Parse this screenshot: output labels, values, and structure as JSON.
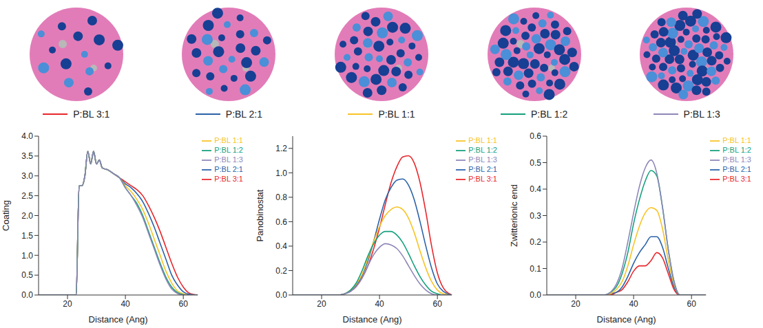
{
  "chart_data": [
    {
      "type": "line",
      "x_label": "Distance (Ang)",
      "y_label": "Coating",
      "legend": "right",
      "xlim": [
        10,
        65
      ],
      "xticks": [
        20,
        40,
        60
      ],
      "ylim": [
        0,
        4
      ],
      "yticks": [
        {
          "value": 0,
          "label": "0.0"
        },
        {
          "value": 0.5,
          "label": "0.5"
        },
        {
          "value": 1,
          "label": "1.0"
        },
        {
          "value": 1.5,
          "label": "1.5"
        },
        {
          "value": 2,
          "label": "2.0"
        },
        {
          "value": 2.5,
          "label": "2.5"
        },
        {
          "value": 3,
          "label": "3.0"
        },
        {
          "value": 3.5,
          "label": "3.5"
        },
        {
          "value": 4,
          "label": "4.0"
        }
      ],
      "x": [
        10,
        20,
        22,
        23,
        24,
        25,
        26,
        27,
        28,
        29,
        30,
        31,
        32,
        34,
        36,
        38,
        40,
        42,
        44,
        46,
        48,
        50,
        52,
        54,
        56,
        58,
        60,
        62,
        65
      ],
      "series": [
        {
          "name": "P:BL 3:1",
          "color": "#e8262b",
          "values": [
            0,
            0,
            0,
            0,
            2.75,
            2.75,
            3.0,
            3.62,
            3.3,
            3.62,
            3.3,
            3.4,
            3.2,
            3.15,
            3.05,
            2.95,
            2.85,
            2.75,
            2.65,
            2.5,
            2.25,
            1.95,
            1.6,
            1.2,
            0.8,
            0.45,
            0.2,
            0.05,
            0
          ]
        },
        {
          "name": "P:BL 2:1",
          "color": "#2a62a8",
          "values": [
            0,
            0,
            0,
            0,
            2.75,
            2.75,
            3.0,
            3.62,
            3.3,
            3.62,
            3.3,
            3.4,
            3.2,
            3.15,
            3.05,
            2.95,
            2.8,
            2.7,
            2.55,
            2.35,
            2.05,
            1.7,
            1.3,
            0.9,
            0.5,
            0.25,
            0.08,
            0.02,
            0
          ]
        },
        {
          "name": "P:BL 1:1",
          "color": "#f7c325",
          "values": [
            0,
            0,
            0,
            0,
            2.75,
            2.75,
            3.0,
            3.62,
            3.3,
            3.62,
            3.3,
            3.4,
            3.2,
            3.15,
            3.05,
            2.95,
            2.75,
            2.6,
            2.4,
            2.15,
            1.8,
            1.4,
            1.0,
            0.6,
            0.3,
            0.1,
            0.03,
            0,
            0
          ]
        },
        {
          "name": "P:BL 1:2",
          "color": "#13a07d",
          "values": [
            0,
            0,
            0,
            0,
            2.75,
            2.75,
            3.0,
            3.62,
            3.3,
            3.62,
            3.3,
            3.4,
            3.2,
            3.15,
            3.05,
            2.95,
            2.7,
            2.5,
            2.3,
            2.0,
            1.6,
            1.2,
            0.8,
            0.45,
            0.2,
            0.06,
            0.01,
            0,
            0
          ]
        },
        {
          "name": "P:BL 1:3",
          "color": "#8d86b8",
          "values": [
            0,
            0,
            0,
            0,
            2.75,
            2.75,
            3.0,
            3.62,
            3.3,
            3.62,
            3.3,
            3.4,
            3.2,
            3.15,
            3.05,
            2.95,
            2.7,
            2.5,
            2.25,
            1.95,
            1.55,
            1.15,
            0.75,
            0.4,
            0.15,
            0.04,
            0,
            0,
            0
          ]
        }
      ]
    },
    {
      "type": "line",
      "x_label": "Distance (Ang)",
      "y_label": "Panobinostat",
      "legend": "right",
      "xlim": [
        10,
        65
      ],
      "xticks": [
        20,
        40,
        60
      ],
      "ylim": [
        0,
        1.3
      ],
      "yticks": [
        {
          "value": 0,
          "label": "0.0"
        },
        {
          "value": 0.2,
          "label": "0.2"
        },
        {
          "value": 0.4,
          "label": "0.4"
        },
        {
          "value": 0.6,
          "label": "0.6"
        },
        {
          "value": 0.8,
          "label": "0.8"
        },
        {
          "value": 1,
          "label": "1.0"
        },
        {
          "value": 1.2,
          "label": "1.2"
        }
      ],
      "x": [
        10,
        20,
        26,
        28,
        30,
        32,
        34,
        36,
        38,
        40,
        42,
        44,
        46,
        48,
        50,
        52,
        54,
        56,
        58,
        60,
        62,
        65
      ],
      "series": [
        {
          "name": "P:BL 3:1",
          "color": "#e8262b",
          "values": [
            0,
            0,
            0,
            0.01,
            0.03,
            0.07,
            0.14,
            0.24,
            0.38,
            0.55,
            0.74,
            0.92,
            1.05,
            1.13,
            1.14,
            1.08,
            0.92,
            0.68,
            0.4,
            0.18,
            0.06,
            0
          ]
        },
        {
          "name": "P:BL 2:1",
          "color": "#2a62a8",
          "values": [
            0,
            0,
            0,
            0.01,
            0.03,
            0.08,
            0.16,
            0.28,
            0.44,
            0.62,
            0.78,
            0.88,
            0.94,
            0.95,
            0.9,
            0.78,
            0.6,
            0.4,
            0.22,
            0.09,
            0.03,
            0
          ]
        },
        {
          "name": "P:BL 1:1",
          "color": "#f7c325",
          "values": [
            0,
            0,
            0,
            0.01,
            0.04,
            0.09,
            0.17,
            0.3,
            0.44,
            0.56,
            0.65,
            0.7,
            0.72,
            0.7,
            0.63,
            0.51,
            0.36,
            0.22,
            0.11,
            0.04,
            0.01,
            0
          ]
        },
        {
          "name": "P:BL 1:2",
          "color": "#13a07d",
          "values": [
            0,
            0,
            0,
            0.01,
            0.04,
            0.1,
            0.2,
            0.32,
            0.42,
            0.49,
            0.52,
            0.52,
            0.49,
            0.43,
            0.34,
            0.24,
            0.15,
            0.08,
            0.03,
            0.01,
            0,
            0
          ]
        },
        {
          "name": "P:BL 1:3",
          "color": "#8d86b8",
          "values": [
            0,
            0,
            0,
            0.01,
            0.03,
            0.07,
            0.14,
            0.24,
            0.33,
            0.39,
            0.42,
            0.41,
            0.38,
            0.32,
            0.24,
            0.16,
            0.09,
            0.04,
            0.01,
            0,
            0,
            0
          ]
        }
      ]
    },
    {
      "type": "line",
      "x_label": "Distance (Ang)",
      "y_label": "Zwitterionic end",
      "legend": "right",
      "xlim": [
        10,
        65
      ],
      "xticks": [
        20,
        40,
        60
      ],
      "ylim": [
        0,
        0.6
      ],
      "yticks": [
        {
          "value": 0,
          "label": "0.0"
        },
        {
          "value": 0.1,
          "label": "0.1"
        },
        {
          "value": 0.2,
          "label": "0.2"
        },
        {
          "value": 0.3,
          "label": "0.3"
        },
        {
          "value": 0.4,
          "label": "0.4"
        },
        {
          "value": 0.5,
          "label": "0.5"
        },
        {
          "value": 0.6,
          "label": "0.6"
        }
      ],
      "x": [
        10,
        20,
        30,
        32,
        34,
        36,
        38,
        40,
        42,
        44,
        46,
        48,
        50,
        52,
        54,
        56,
        60,
        65
      ],
      "series": [
        {
          "name": "P:BL 3:1",
          "color": "#e8262b",
          "values": [
            0,
            0,
            0,
            0,
            0.01,
            0.02,
            0.05,
            0.09,
            0.11,
            0.11,
            0.13,
            0.16,
            0.14,
            0.08,
            0.02,
            0,
            0,
            0
          ]
        },
        {
          "name": "P:BL 2:1",
          "color": "#2a62a8",
          "values": [
            0,
            0,
            0,
            0.005,
            0.01,
            0.03,
            0.07,
            0.12,
            0.16,
            0.19,
            0.22,
            0.22,
            0.18,
            0.1,
            0.03,
            0,
            0,
            0
          ]
        },
        {
          "name": "P:BL 1:1",
          "color": "#f7c325",
          "values": [
            0,
            0,
            0,
            0.005,
            0.02,
            0.05,
            0.11,
            0.19,
            0.26,
            0.31,
            0.33,
            0.32,
            0.25,
            0.13,
            0.04,
            0,
            0,
            0
          ]
        },
        {
          "name": "P:BL 1:2",
          "color": "#13a07d",
          "values": [
            0,
            0,
            0,
            0.01,
            0.03,
            0.08,
            0.16,
            0.27,
            0.36,
            0.43,
            0.47,
            0.45,
            0.33,
            0.17,
            0.05,
            0,
            0,
            0
          ]
        },
        {
          "name": "P:BL 1:3",
          "color": "#8d86b8",
          "values": [
            0,
            0,
            0,
            0.01,
            0.04,
            0.1,
            0.2,
            0.31,
            0.41,
            0.48,
            0.51,
            0.46,
            0.33,
            0.17,
            0.05,
            0,
            0,
            0
          ]
        }
      ]
    }
  ]
}
